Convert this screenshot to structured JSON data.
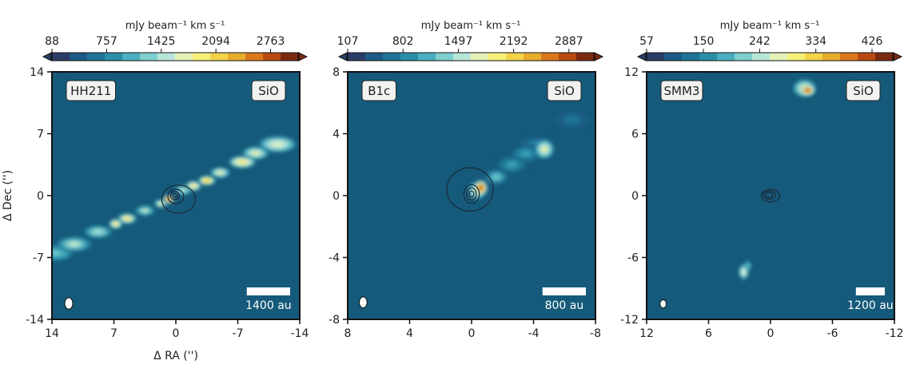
{
  "figure": {
    "ylabel": "Δ Dec ('')",
    "xlabel": "Δ RA ('')"
  },
  "colors": {
    "background": "#155a7a",
    "axis": "#111111",
    "contour": "#1a2a3a",
    "colormap": [
      "#2a3d66",
      "#1e5a85",
      "#1f7496",
      "#2a8ea7",
      "#4aaebf",
      "#7ecfd0",
      "#b8e6d9",
      "#e4f2ba",
      "#f6f07a",
      "#f3d34a",
      "#e8ad2e",
      "#d9781c",
      "#b84a12",
      "#7a2a10"
    ]
  },
  "chart_data": [
    {
      "type": "heatmap",
      "source": "HH211",
      "label": "HH211",
      "tracer": "SiO",
      "colorbar_label": "mJy beam⁻¹ km s⁻¹",
      "colorbar_ticks": [
        88,
        757,
        1425,
        2094,
        2763
      ],
      "colorbar_range": [
        88,
        3100
      ],
      "xlim": [
        14,
        -14
      ],
      "ylim": [
        -14,
        14
      ],
      "xticks": [
        14,
        7,
        0,
        -7,
        -14
      ],
      "yticks": [
        14,
        7,
        0,
        -7,
        -14
      ],
      "scalebar_label": "1400 au",
      "scalebar_length_arcsec": 4.9,
      "beam": {
        "x": 12.1,
        "y": -12.2,
        "major": 0.65,
        "minor": 0.45
      },
      "emission": [
        {
          "x": -11.5,
          "y": 5.8,
          "sx": 1.7,
          "sy": 0.75,
          "v": 0.55
        },
        {
          "x": -9.0,
          "y": 4.8,
          "sx": 1.2,
          "sy": 0.6,
          "v": 0.62
        },
        {
          "x": -7.5,
          "y": 3.8,
          "sx": 1.2,
          "sy": 0.55,
          "v": 0.72
        },
        {
          "x": -5.0,
          "y": 2.6,
          "sx": 0.9,
          "sy": 0.5,
          "v": 0.62
        },
        {
          "x": -3.5,
          "y": 1.7,
          "sx": 0.8,
          "sy": 0.45,
          "v": 0.8
        },
        {
          "x": -2.0,
          "y": 1.1,
          "sx": 0.7,
          "sy": 0.45,
          "v": 0.7
        },
        {
          "x": -0.8,
          "y": 0.6,
          "sx": 0.8,
          "sy": 0.5,
          "v": 0.5
        },
        {
          "x": 0.8,
          "y": -0.4,
          "sx": 0.5,
          "sy": 0.4,
          "v": 0.93
        },
        {
          "x": 1.7,
          "y": -0.9,
          "sx": 0.6,
          "sy": 0.4,
          "v": 0.6
        },
        {
          "x": 3.5,
          "y": -1.7,
          "sx": 0.9,
          "sy": 0.5,
          "v": 0.5
        },
        {
          "x": 5.5,
          "y": -2.6,
          "sx": 0.9,
          "sy": 0.5,
          "v": 0.68
        },
        {
          "x": 6.8,
          "y": -3.2,
          "sx": 0.6,
          "sy": 0.45,
          "v": 0.72
        },
        {
          "x": 8.8,
          "y": -4.1,
          "sx": 1.3,
          "sy": 0.6,
          "v": 0.45
        },
        {
          "x": 11.5,
          "y": -5.5,
          "sx": 1.6,
          "sy": 0.7,
          "v": 0.5
        },
        {
          "x": 13.5,
          "y": -6.5,
          "sx": 1.5,
          "sy": 0.7,
          "v": 0.42
        }
      ],
      "contours": [
        {
          "x": -0.3,
          "y": -0.4,
          "rx": 1.9,
          "ry": 1.6
        },
        {
          "x": 0.0,
          "y": -0.1,
          "rx": 0.9,
          "ry": 0.8
        },
        {
          "x": 0.1,
          "y": 0.0,
          "rx": 0.5,
          "ry": 0.45
        },
        {
          "x": 0.1,
          "y": 0.0,
          "rx": 0.25,
          "ry": 0.22
        }
      ]
    },
    {
      "type": "heatmap",
      "source": "B1c",
      "label": "B1c",
      "tracer": "SiO",
      "colorbar_label": "mJy beam⁻¹ km s⁻¹",
      "colorbar_ticks": [
        107,
        802,
        1497,
        2192,
        2887
      ],
      "colorbar_range": [
        107,
        3200
      ],
      "xlim": [
        8,
        -8
      ],
      "ylim": [
        -8,
        8
      ],
      "xticks": [
        8,
        4,
        0,
        -4,
        -8
      ],
      "yticks": [
        8,
        4,
        0,
        -4,
        -8
      ],
      "scalebar_label": "800 au",
      "scalebar_length_arcsec": 2.8,
      "beam": {
        "x": 7.0,
        "y": -6.9,
        "major": 0.35,
        "minor": 0.25
      },
      "emission": [
        {
          "x": -0.6,
          "y": 0.5,
          "sx": 0.35,
          "sy": 0.4,
          "v": 0.95
        },
        {
          "x": -0.3,
          "y": 0.3,
          "sx": 0.45,
          "sy": 0.45,
          "v": 0.55
        },
        {
          "x": -1.6,
          "y": 1.2,
          "sx": 0.6,
          "sy": 0.4,
          "v": 0.38
        },
        {
          "x": -2.6,
          "y": 2.0,
          "sx": 0.7,
          "sy": 0.4,
          "v": 0.32
        },
        {
          "x": -3.5,
          "y": 2.7,
          "sx": 0.7,
          "sy": 0.4,
          "v": 0.3
        },
        {
          "x": -4.7,
          "y": 3.0,
          "sx": 0.5,
          "sy": 0.5,
          "v": 0.58
        },
        {
          "x": -4.1,
          "y": 3.4,
          "sx": 0.8,
          "sy": 0.3,
          "v": 0.2
        },
        {
          "x": -6.5,
          "y": 4.9,
          "sx": 0.8,
          "sy": 0.4,
          "v": 0.15
        }
      ],
      "contours": [
        {
          "x": 0.1,
          "y": 0.4,
          "rx": 1.5,
          "ry": 1.4
        },
        {
          "x": 0.0,
          "y": 0.1,
          "rx": 0.5,
          "ry": 0.6
        },
        {
          "x": 0.0,
          "y": 0.1,
          "rx": 0.3,
          "ry": 0.4
        },
        {
          "x": 0.0,
          "y": 0.1,
          "rx": 0.15,
          "ry": 0.2
        }
      ]
    },
    {
      "type": "heatmap",
      "source": "SMM3",
      "label": "SMM3",
      "tracer": "SiO",
      "colorbar_label": "mJy beam⁻¹ km s⁻¹",
      "colorbar_ticks": [
        57,
        150,
        242,
        334,
        426
      ],
      "colorbar_range": [
        57,
        460
      ],
      "xlim": [
        12,
        -12
      ],
      "ylim": [
        -12,
        12
      ],
      "xticks": [
        12,
        6,
        0,
        -6,
        -12
      ],
      "yticks": [
        12,
        6,
        0,
        -6,
        -12
      ],
      "scalebar_label": "1200 au",
      "scalebar_length_arcsec": 2.8,
      "beam": {
        "x": 10.4,
        "y": -10.5,
        "major": 0.4,
        "minor": 0.3
      },
      "emission": [
        {
          "x": -3.6,
          "y": 10.2,
          "sx": 0.55,
          "sy": 0.4,
          "v": 0.95
        },
        {
          "x": -3.3,
          "y": 10.4,
          "sx": 0.9,
          "sy": 0.7,
          "v": 0.6
        },
        {
          "x": 2.6,
          "y": -7.4,
          "sx": 0.4,
          "sy": 0.6,
          "v": 0.55
        },
        {
          "x": 2.2,
          "y": -6.8,
          "sx": 0.3,
          "sy": 0.4,
          "v": 0.4
        }
      ],
      "contours": [
        {
          "x": 0.0,
          "y": 0.0,
          "rx": 0.9,
          "ry": 0.6
        },
        {
          "x": 0.1,
          "y": 0.05,
          "rx": 0.6,
          "ry": 0.4
        },
        {
          "x": 0.15,
          "y": 0.05,
          "rx": 0.35,
          "ry": 0.25
        }
      ]
    }
  ]
}
